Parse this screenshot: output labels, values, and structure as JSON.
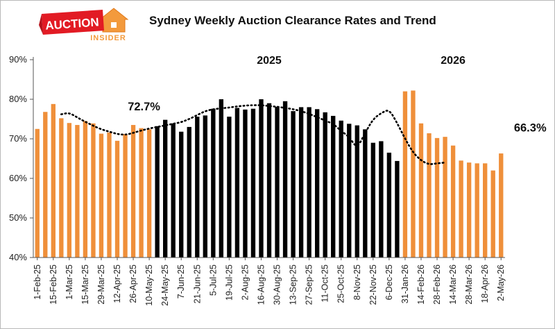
{
  "logo": {
    "word1": "AUCTION",
    "word2": "INSIDER",
    "icon": "house-icon"
  },
  "chart_data": {
    "type": "bar",
    "title": "Sydney Weekly Auction Clearance Rates and Trend",
    "xlabel": "",
    "ylabel": "",
    "ylim": [
      40,
      90
    ],
    "yticks": [
      "40%",
      "50%",
      "60%",
      "70%",
      "80%",
      "90%"
    ],
    "grid": false,
    "colors": {
      "orange": "#ef8f3a",
      "black": "#000000",
      "trend": "#000000"
    },
    "tick_labels": [
      "1-Feb-25",
      "15-Feb-25",
      "1-Mar-25",
      "15-Mar-25",
      "29-Mar-25",
      "12-Apr-25",
      "26-Apr-25",
      "10-May-25",
      "24-May-25",
      "7-Jun-25",
      "21-Jun-25",
      "5-Jul-25",
      "19-Jul-25",
      "2-Aug-25",
      "16-Aug-25",
      "30-Aug-25",
      "13-Sep-25",
      "27-Sep-25",
      "11-Oct-25",
      "25-Oct-25",
      "8-Nov-25",
      "22-Nov-25",
      "6-Dec-25",
      "31-Jan-26",
      "14-Feb-26",
      "28-Feb-26",
      "14-Mar-26",
      "28-Mar-26",
      "18-Apr-26",
      "2-May-26"
    ],
    "values": [
      72.5,
      76.8,
      78.8,
      75.2,
      74.0,
      73.5,
      74.5,
      73.9,
      71.3,
      71.6,
      69.5,
      71.2,
      73.5,
      72.7,
      72.4,
      73.2,
      74.8,
      73.9,
      71.8,
      73.0,
      75.6,
      75.9,
      77.6,
      80.0,
      75.6,
      77.8,
      77.4,
      77.6,
      80.0,
      79.0,
      78.1,
      79.5,
      77.0,
      78.0,
      78.0,
      77.5,
      76.7,
      75.8,
      74.6,
      73.8,
      73.4,
      72.4,
      69.0,
      69.4,
      66.5,
      64.4,
      82.0,
      82.2,
      73.9,
      71.4,
      70.2,
      70.5,
      68.3,
      64.5,
      64.0,
      63.8,
      63.8,
      62.0,
      66.3
    ],
    "color_index": [
      0,
      0,
      0,
      0,
      0,
      0,
      0,
      0,
      0,
      0,
      0,
      0,
      0,
      0,
      0,
      1,
      1,
      1,
      1,
      1,
      1,
      1,
      1,
      1,
      1,
      1,
      1,
      1,
      1,
      1,
      1,
      1,
      1,
      1,
      1,
      1,
      1,
      1,
      1,
      1,
      1,
      1,
      1,
      1,
      1,
      1,
      0,
      0,
      0,
      0,
      0,
      0,
      0,
      0,
      0,
      0,
      0,
      0,
      0
    ],
    "trend": {
      "start_index": 3,
      "values": [
        76.2,
        76.6,
        75.4,
        74.3,
        73.3,
        72.4,
        71.8,
        71.2,
        71.0,
        71.5,
        72.1,
        72.6,
        73.0,
        73.4,
        73.8,
        74.2,
        75.0,
        76.0,
        77.0,
        77.5,
        77.7,
        77.9,
        78.2,
        78.4,
        78.5,
        78.5,
        78.3,
        78.1,
        77.8,
        77.5,
        77.0,
        76.3,
        75.5,
        74.6,
        73.8,
        72.0,
        70.5,
        67.5,
        71.5,
        75.0,
        76.5,
        77.5,
        74.0,
        70.0,
        66.5,
        64.5,
        63.5,
        63.8,
        64.0
      ],
      "style": "dotted"
    },
    "annotations": [
      {
        "text": "72.7%",
        "index": 13
      },
      {
        "text": "66.3%",
        "index": 58
      }
    ],
    "year_labels": [
      {
        "text": "2025",
        "index": 29
      },
      {
        "text": "2026",
        "index": 52
      }
    ]
  }
}
